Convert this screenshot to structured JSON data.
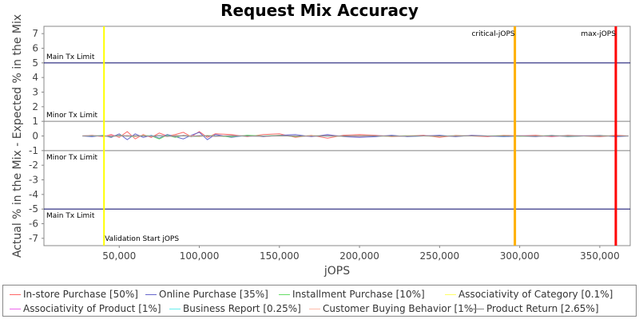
{
  "chart_data": {
    "type": "line",
    "title": "Request Mix Accuracy",
    "xlabel": "jOPS",
    "ylabel": "Actual % in the Mix - Expected % in the Mix",
    "xlim": [
      3000,
      369000
    ],
    "ylim": [
      -7.5,
      7.5
    ],
    "x_ticks": [
      "50,000",
      "100,000",
      "150,000",
      "200,000",
      "250,000",
      "300,000",
      "350,000"
    ],
    "x_tick_values": [
      50000,
      100000,
      150000,
      200000,
      250000,
      300000,
      350000
    ],
    "y_ticks": [
      "7",
      "6",
      "5",
      "4",
      "3",
      "2",
      "1",
      "0",
      "-1",
      "-2",
      "-3",
      "-4",
      "-5",
      "-6",
      "-7"
    ],
    "y_tick_values": [
      7,
      6,
      5,
      4,
      3,
      2,
      1,
      0,
      -1,
      -2,
      -3,
      -4,
      -5,
      -6,
      -7
    ],
    "grid": false,
    "legend_placement": "bottom",
    "horizontal_lines": [
      {
        "y": 5,
        "label": "Main Tx Limit",
        "color": "#000066"
      },
      {
        "y": 1,
        "label": "Minor Tx Limit",
        "color": "#808080"
      },
      {
        "y": -1,
        "label": "Minor Tx Limit",
        "color": "#808080"
      },
      {
        "y": -5,
        "label": "Main Tx Limit",
        "color": "#000066"
      }
    ],
    "vertical_lines": [
      {
        "x": 40500,
        "label": "Validation Start jOPS",
        "color": "#ffff00"
      },
      {
        "x": 297000,
        "label": "critical-jOPS",
        "color": "#ffb000"
      },
      {
        "x": 360000,
        "label": "max-jOPS",
        "color": "#ff0000"
      }
    ],
    "x": [
      27000,
      33000,
      40000,
      45000,
      50000,
      55000,
      60000,
      65000,
      70000,
      75000,
      80000,
      85000,
      90000,
      95000,
      100000,
      105000,
      110000,
      120000,
      130000,
      140000,
      150000,
      160000,
      170000,
      180000,
      190000,
      200000,
      210000,
      220000,
      230000,
      240000,
      250000,
      260000,
      270000,
      280000,
      290000,
      300000,
      310000,
      320000,
      330000,
      340000,
      350000,
      360000,
      368000
    ],
    "series": [
      {
        "name": "In-store Purchase [50%]",
        "color": "#ff6666",
        "values": [
          0.0,
          0.05,
          -0.05,
          0.1,
          -0.1,
          0.3,
          -0.2,
          0.1,
          -0.1,
          0.2,
          0.0,
          0.1,
          0.25,
          -0.05,
          0.3,
          -0.1,
          0.15,
          0.1,
          -0.05,
          0.1,
          0.15,
          -0.1,
          0.05,
          -0.15,
          0.05,
          0.1,
          0.05,
          -0.05,
          0.0,
          0.05,
          -0.1,
          0.05,
          0.0,
          -0.05,
          0.05,
          0.0,
          0.05,
          -0.05,
          0.05,
          0.0,
          -0.05,
          0.05,
          0.0
        ]
      },
      {
        "name": "Online Purchase [35%]",
        "color": "#6666cc",
        "values": [
          0.0,
          -0.05,
          0.05,
          -0.1,
          0.15,
          -0.25,
          0.15,
          -0.1,
          0.05,
          -0.15,
          0.1,
          -0.05,
          -0.2,
          0.05,
          0.25,
          -0.25,
          0.1,
          -0.1,
          0.05,
          -0.05,
          0.05,
          0.1,
          -0.05,
          0.1,
          -0.05,
          -0.1,
          -0.05,
          0.05,
          -0.05,
          0.0,
          0.05,
          -0.05,
          0.05,
          0.0,
          -0.05,
          0.0,
          -0.05,
          0.05,
          -0.05,
          0.0,
          0.05,
          -0.05,
          0.0
        ]
      },
      {
        "name": "Installment Purchase [10%]",
        "color": "#66dd66",
        "values": [
          0.0,
          0.0,
          0.02,
          -0.05,
          0.05,
          0.0,
          -0.05,
          0.05,
          0.0,
          -0.2,
          0.05,
          -0.1,
          0.05,
          0.0,
          -0.05,
          0.05,
          0.0,
          -0.05,
          0.05,
          0.0,
          0.05,
          -0.05,
          0.02,
          0.0,
          -0.02,
          0.02,
          0.0,
          -0.02,
          0.02,
          0.0,
          -0.02,
          0.02,
          0.0,
          0.0,
          0.02,
          -0.02,
          0.0,
          0.02,
          -0.02,
          0.0,
          0.02,
          0.0,
          0.0
        ]
      },
      {
        "name": "Associativity of Category [0.1%]",
        "color": "#ffff66",
        "values": [
          0.0,
          0.0,
          0.0,
          0.0,
          0.0,
          0.0,
          0.0,
          0.0,
          0.0,
          0.0,
          0.0,
          0.0,
          0.0,
          0.0,
          0.0,
          0.0,
          0.0,
          0.0,
          0.0,
          0.0,
          0.0,
          0.0,
          0.0,
          0.0,
          0.0,
          0.0,
          0.0,
          0.0,
          0.0,
          0.0,
          0.0,
          0.0,
          0.0,
          0.0,
          0.0,
          0.0,
          0.0,
          0.0,
          0.0,
          0.0,
          0.0,
          0.0,
          0.0
        ]
      },
      {
        "name": "Associativity of Product [1%]",
        "color": "#ee66ee",
        "values": [
          0.0,
          0.02,
          -0.02,
          0.03,
          -0.03,
          0.05,
          -0.02,
          0.02,
          -0.03,
          0.02,
          0.0,
          -0.02,
          0.03,
          -0.02,
          0.02,
          0.0,
          -0.02,
          0.02,
          0.0,
          -0.02,
          0.02,
          0.0,
          -0.01,
          0.01,
          0.0,
          -0.01,
          0.01,
          0.0,
          -0.01,
          0.01,
          0.0,
          0.0,
          0.01,
          -0.01,
          0.0,
          0.01,
          0.0,
          -0.01,
          0.0,
          0.01,
          0.0,
          0.0,
          0.0
        ]
      },
      {
        "name": "Business Report [0.25%]",
        "color": "#66eeee",
        "values": [
          0.0,
          0.0,
          0.01,
          -0.01,
          0.0,
          0.02,
          -0.01,
          0.0,
          0.01,
          -0.01,
          0.0,
          0.01,
          0.0,
          -0.01,
          0.0,
          0.01,
          0.0,
          0.0,
          -0.01,
          0.0,
          0.01,
          0.0,
          0.0,
          -0.01,
          0.0,
          0.01,
          0.0,
          0.0,
          -0.01,
          0.0,
          0.0,
          0.01,
          0.0,
          0.0,
          -0.01,
          0.0,
          0.0,
          0.0,
          0.01,
          0.0,
          0.0,
          0.0,
          0.0
        ]
      },
      {
        "name": "Customer Buying Behavior [1%]",
        "color": "#ffbbaa",
        "values": [
          0.0,
          0.03,
          -0.02,
          0.02,
          -0.05,
          0.05,
          -0.03,
          0.03,
          -0.02,
          0.02,
          -0.05,
          0.05,
          0.0,
          0.02,
          -0.03,
          0.03,
          -0.02,
          0.02,
          0.0,
          -0.02,
          0.02,
          -0.02,
          0.02,
          0.0,
          -0.02,
          0.02,
          0.0,
          -0.01,
          0.01,
          0.0,
          -0.01,
          0.01,
          0.0,
          -0.01,
          0.01,
          0.0,
          -0.01,
          0.01,
          0.0,
          0.0,
          0.01,
          0.0,
          0.0
        ]
      },
      {
        "name": "Product Return [2.65%]",
        "color": "#888888",
        "values": [
          0.0,
          0.02,
          0.0,
          -0.03,
          0.03,
          -0.02,
          0.02,
          0.0,
          -0.02,
          0.03,
          -0.02,
          0.0,
          0.02,
          -0.03,
          0.02,
          0.0,
          -0.02,
          0.02,
          0.0,
          -0.02,
          0.01,
          0.0,
          -0.01,
          0.01,
          0.0,
          -0.01,
          0.01,
          0.0,
          -0.01,
          0.01,
          0.0,
          -0.01,
          0.01,
          0.0,
          0.0,
          0.01,
          -0.01,
          0.0,
          0.01,
          0.0,
          -0.01,
          0.0,
          0.0
        ]
      }
    ]
  }
}
